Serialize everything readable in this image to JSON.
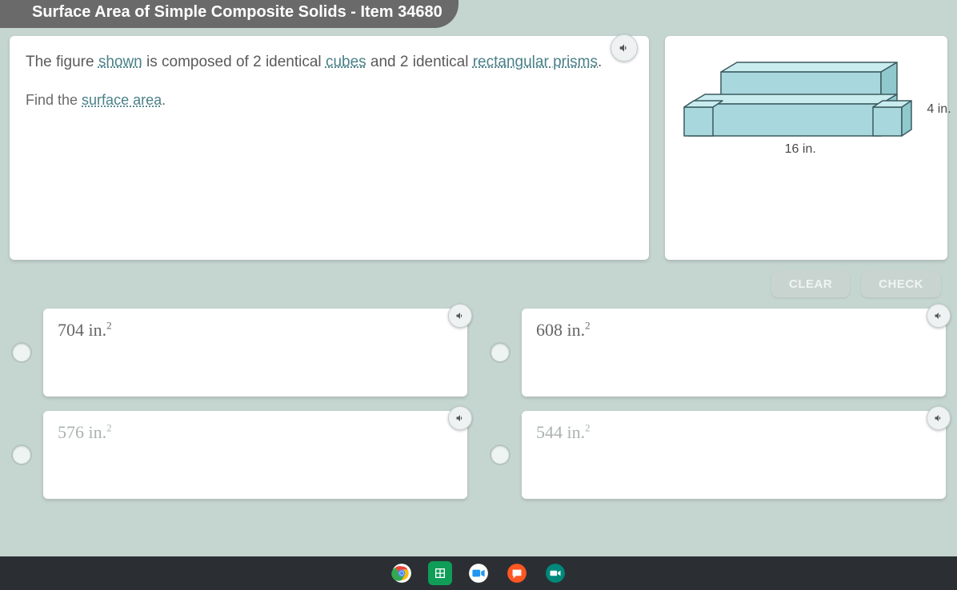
{
  "header": {
    "title": "Surface Area of Simple Composite Solids - Item 34680"
  },
  "colors": {
    "page_bg": "#c5d5d0",
    "panel_bg": "#ffffff",
    "header_bg": "#6a6a6a",
    "link_underline": "#4a8088",
    "prism_fill": "#a8d8dd",
    "prism_stroke": "#3a5a5f",
    "button_bg": "#c9d4d1",
    "button_text": "#f0f4f3"
  },
  "question": {
    "prefix": "The figure ",
    "shown": "shown",
    "mid1": " is composed of 2 identical ",
    "cubes": "cubes",
    "mid2": " and 2 identical ",
    "prisms": "rectangular prisms",
    "suffix": ".",
    "find_prefix": "Find the ",
    "surface_area": "surface area",
    "find_suffix": "."
  },
  "figure": {
    "type": "composite-prism",
    "width_label": "16 in.",
    "height_label": "4 in.",
    "fill": "#a8d8dd",
    "stroke": "#3a5a5f"
  },
  "buttons": {
    "clear": "CLEAR",
    "check": "CHECK"
  },
  "answers": [
    {
      "value": "704",
      "unit": "in.",
      "exp": "2",
      "dim": false
    },
    {
      "value": "608",
      "unit": "in.",
      "exp": "2",
      "dim": false
    },
    {
      "value": "576",
      "unit": "in.",
      "exp": "2",
      "dim": true
    },
    {
      "value": "544",
      "unit": "in.",
      "exp": "2",
      "dim": true
    }
  ],
  "taskbar_icons": [
    "chrome",
    "sheets",
    "meet",
    "chat",
    "webcam"
  ]
}
